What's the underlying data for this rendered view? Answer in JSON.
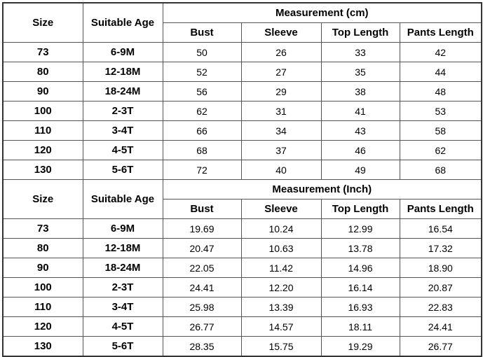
{
  "tables": [
    {
      "group_header": "Measurement (cm)",
      "size_header": "Size",
      "age_header": "Suitable Age",
      "columns": [
        "Bust",
        "Sleeve",
        "Top Length",
        "Pants Length"
      ],
      "rows": [
        {
          "size": "73",
          "age": "6-9M",
          "values": [
            "50",
            "26",
            "33",
            "42"
          ]
        },
        {
          "size": "80",
          "age": "12-18M",
          "values": [
            "52",
            "27",
            "35",
            "44"
          ]
        },
        {
          "size": "90",
          "age": "18-24M",
          "values": [
            "56",
            "29",
            "38",
            "48"
          ]
        },
        {
          "size": "100",
          "age": "2-3T",
          "values": [
            "62",
            "31",
            "41",
            "53"
          ]
        },
        {
          "size": "110",
          "age": "3-4T",
          "values": [
            "66",
            "34",
            "43",
            "58"
          ]
        },
        {
          "size": "120",
          "age": "4-5T",
          "values": [
            "68",
            "37",
            "46",
            "62"
          ]
        },
        {
          "size": "130",
          "age": "5-6T",
          "values": [
            "72",
            "40",
            "49",
            "68"
          ]
        }
      ]
    },
    {
      "group_header": "Measurement (Inch)",
      "size_header": "Size",
      "age_header": "Suitable Age",
      "columns": [
        "Bust",
        "Sleeve",
        "Top Length",
        "Pants Length"
      ],
      "rows": [
        {
          "size": "73",
          "age": "6-9M",
          "values": [
            "19.69",
            "10.24",
            "12.99",
            "16.54"
          ]
        },
        {
          "size": "80",
          "age": "12-18M",
          "values": [
            "20.47",
            "10.63",
            "13.78",
            "17.32"
          ]
        },
        {
          "size": "90",
          "age": "18-24M",
          "values": [
            "22.05",
            "11.42",
            "14.96",
            "18.90"
          ]
        },
        {
          "size": "100",
          "age": "2-3T",
          "values": [
            "24.41",
            "12.20",
            "16.14",
            "20.87"
          ]
        },
        {
          "size": "110",
          "age": "3-4T",
          "values": [
            "25.98",
            "13.39",
            "16.93",
            "22.83"
          ]
        },
        {
          "size": "120",
          "age": "4-5T",
          "values": [
            "26.77",
            "14.57",
            "18.11",
            "24.41"
          ]
        },
        {
          "size": "130",
          "age": "5-6T",
          "values": [
            "28.35",
            "15.75",
            "19.29",
            "26.77"
          ]
        }
      ]
    }
  ]
}
